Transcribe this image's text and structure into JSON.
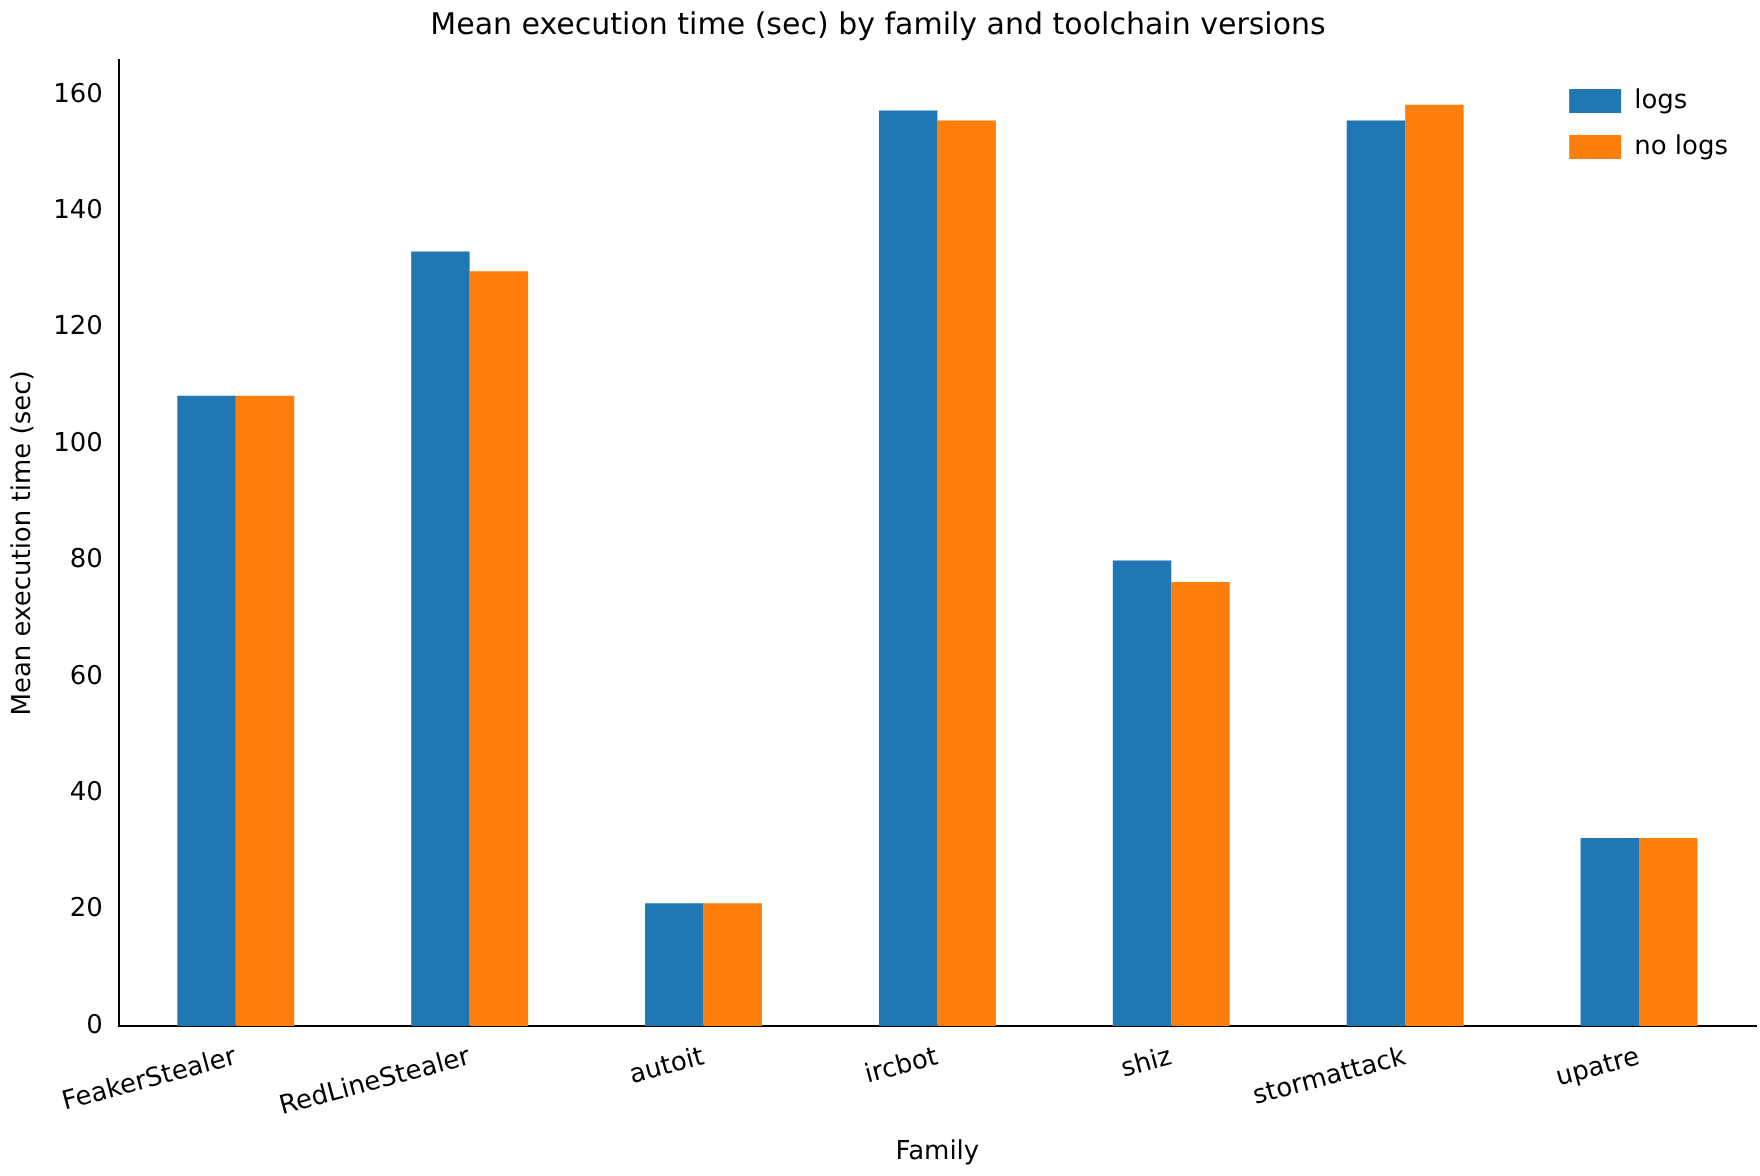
{
  "chart_data": {
    "type": "bar",
    "title": "Mean execution time (sec) by family and toolchain versions",
    "xlabel": "Family",
    "ylabel": "Mean execution time (sec)",
    "categories": [
      "FeakerStealer",
      "RedLineStealer",
      "autoit",
      "ircbot",
      "shiz",
      "stormattack",
      "upatre"
    ],
    "series": [
      {
        "name": "logs",
        "color": "#1f77b4",
        "values": [
          108.3,
          133.1,
          21.1,
          157.3,
          80.0,
          155.6,
          32.3
        ]
      },
      {
        "name": "no logs",
        "color": "#ff7f0e",
        "values": [
          108.3,
          129.7,
          21.1,
          155.6,
          76.3,
          158.3,
          32.3
        ]
      }
    ],
    "ylim": [
      0,
      166
    ],
    "yticks": [
      0,
      20,
      40,
      60,
      80,
      100,
      120,
      140,
      160
    ],
    "grid": false,
    "legend": "top right"
  }
}
